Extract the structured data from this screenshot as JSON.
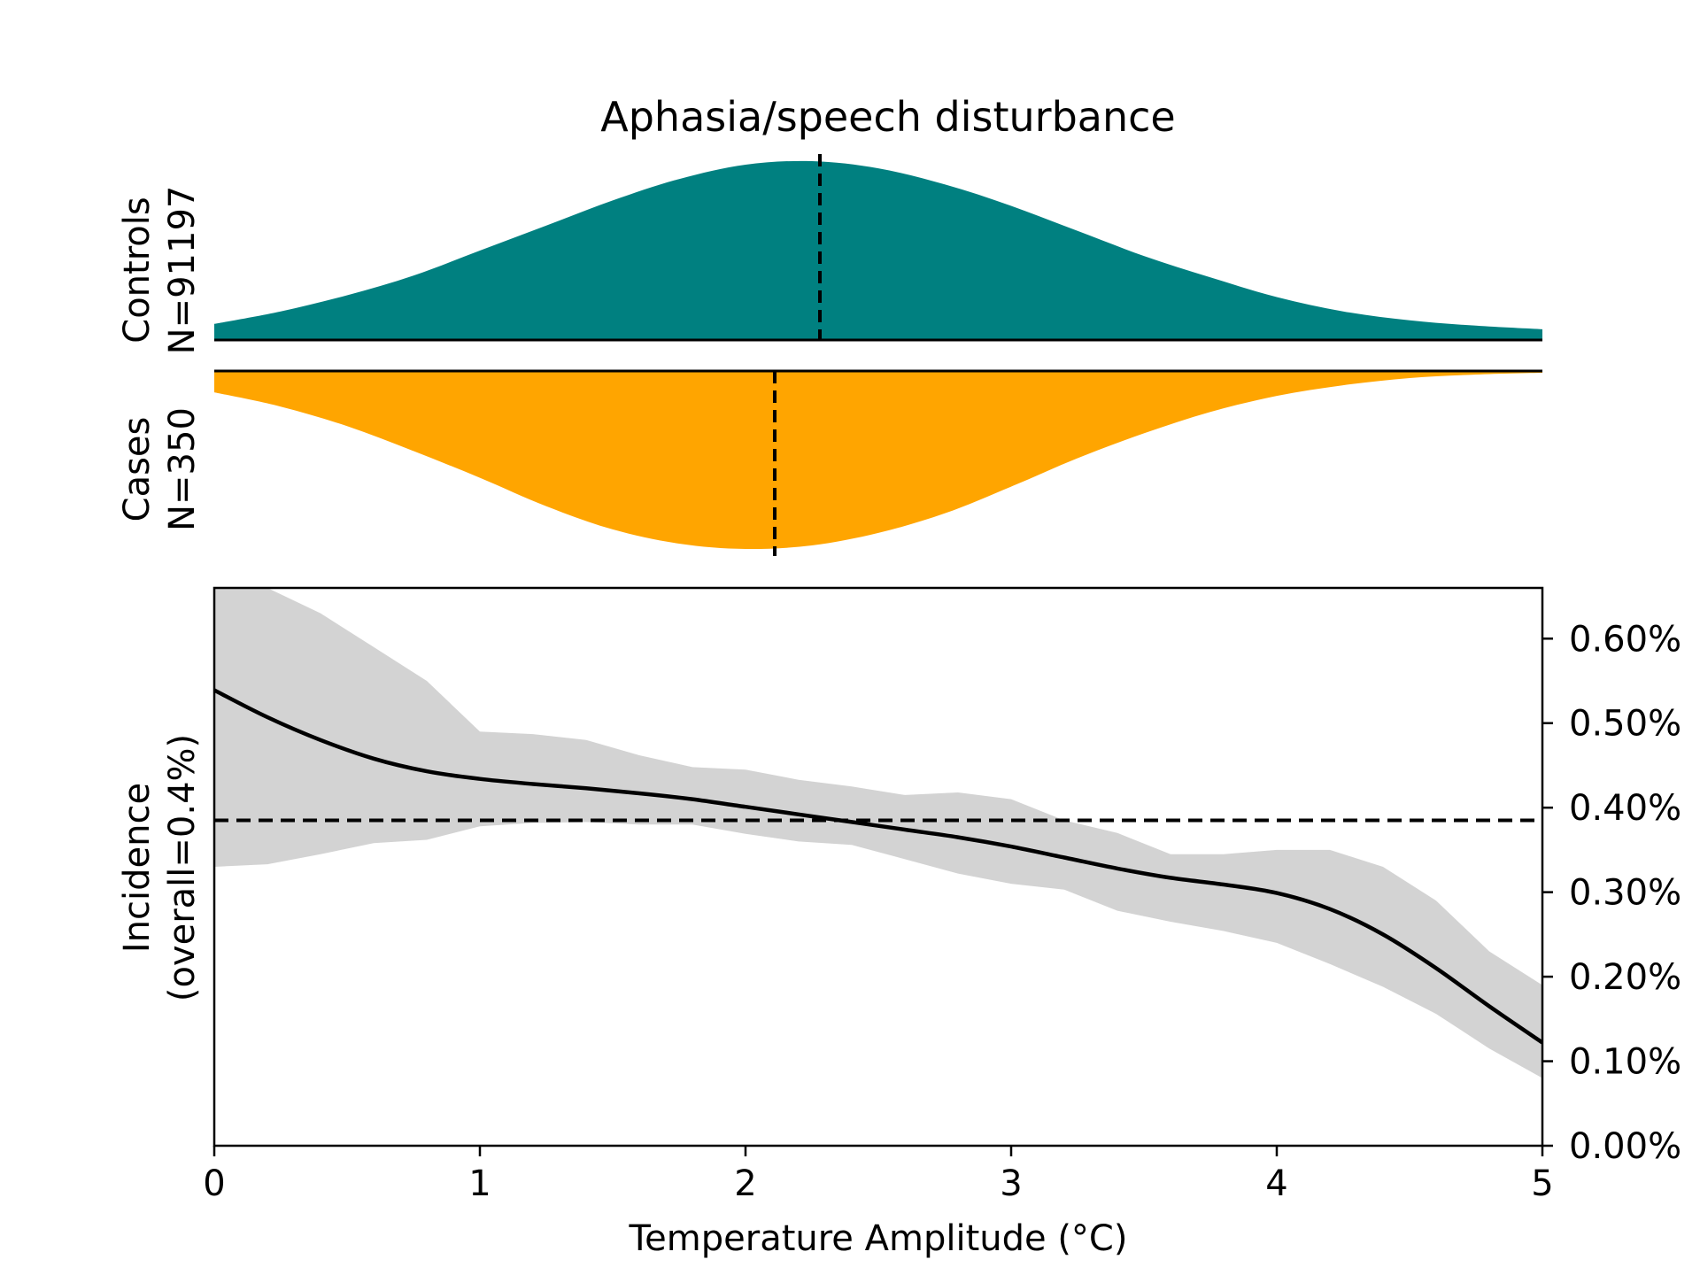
{
  "chart_data": {
    "title": "Aphasia/speech disturbance",
    "xlabel": "Temperature Amplitude (°C)",
    "xlim": [
      0,
      5
    ],
    "x_ticks": [
      {
        "v": 0,
        "label": "0"
      },
      {
        "v": 1,
        "label": "1"
      },
      {
        "v": 2,
        "label": "2"
      },
      {
        "v": 3,
        "label": "3"
      },
      {
        "v": 4,
        "label": "4"
      },
      {
        "v": 5,
        "label": "5"
      }
    ],
    "colors": {
      "controls": "#008080",
      "cases": "#ffa500",
      "ci_band": "#d3d3d3",
      "line": "#000000"
    },
    "controls": {
      "type": "area",
      "label_line1": "Controls",
      "label_line2": "N=91197",
      "median": 2.28,
      "x": [
        0,
        0.25,
        0.5,
        0.75,
        1.0,
        1.25,
        1.5,
        1.75,
        2.0,
        2.25,
        2.5,
        2.75,
        3.0,
        3.25,
        3.5,
        3.75,
        4.0,
        4.25,
        4.5,
        4.75,
        5.0
      ],
      "density": [
        0.09,
        0.16,
        0.25,
        0.36,
        0.5,
        0.64,
        0.78,
        0.9,
        0.98,
        1.0,
        0.96,
        0.87,
        0.75,
        0.61,
        0.47,
        0.35,
        0.24,
        0.16,
        0.11,
        0.08,
        0.06
      ]
    },
    "cases": {
      "type": "area",
      "label_line1": "Cases",
      "label_line2": "N=350",
      "median": 2.11,
      "x": [
        0,
        0.25,
        0.5,
        0.75,
        1.0,
        1.25,
        1.5,
        1.75,
        2.0,
        2.25,
        2.5,
        2.75,
        3.0,
        3.25,
        3.5,
        3.75,
        4.0,
        4.25,
        4.5,
        4.75,
        5.0
      ],
      "density": [
        0.12,
        0.2,
        0.31,
        0.45,
        0.6,
        0.76,
        0.89,
        0.97,
        1.0,
        0.98,
        0.91,
        0.8,
        0.65,
        0.49,
        0.35,
        0.23,
        0.14,
        0.08,
        0.04,
        0.02,
        0.01
      ]
    },
    "incidence": {
      "type": "line",
      "ylabel_line1": "Incidence",
      "ylabel_line2": "(overall=0.4%)",
      "ylim": [
        0,
        0.66
      ],
      "y_ticks": [
        {
          "v": 0.0,
          "label": "0.00%"
        },
        {
          "v": 0.1,
          "label": "0.10%"
        },
        {
          "v": 0.2,
          "label": "0.20%"
        },
        {
          "v": 0.3,
          "label": "0.30%"
        },
        {
          "v": 0.4,
          "label": "0.40%"
        },
        {
          "v": 0.5,
          "label": "0.50%"
        },
        {
          "v": 0.6,
          "label": "0.60%"
        }
      ],
      "overall": 0.385,
      "x": [
        0,
        0.2,
        0.4,
        0.6,
        0.8,
        1.0,
        1.2,
        1.4,
        1.6,
        1.8,
        2.0,
        2.2,
        2.4,
        2.6,
        2.8,
        3.0,
        3.2,
        3.4,
        3.6,
        3.8,
        4.0,
        4.2,
        4.4,
        4.6,
        4.8,
        5.0
      ],
      "y": [
        0.539,
        0.507,
        0.48,
        0.458,
        0.443,
        0.434,
        0.428,
        0.423,
        0.417,
        0.41,
        0.401,
        0.392,
        0.383,
        0.374,
        0.365,
        0.354,
        0.341,
        0.328,
        0.317,
        0.309,
        0.299,
        0.28,
        0.25,
        0.21,
        0.165,
        0.122
      ],
      "ci_upper": [
        0.66,
        0.66,
        0.63,
        0.59,
        0.55,
        0.49,
        0.487,
        0.48,
        0.462,
        0.448,
        0.445,
        0.433,
        0.425,
        0.415,
        0.418,
        0.41,
        0.385,
        0.37,
        0.345,
        0.345,
        0.35,
        0.35,
        0.33,
        0.29,
        0.23,
        0.19
      ],
      "ci_lower": [
        0.33,
        0.333,
        0.345,
        0.358,
        0.362,
        0.378,
        0.382,
        0.383,
        0.38,
        0.38,
        0.369,
        0.36,
        0.356,
        0.339,
        0.322,
        0.31,
        0.303,
        0.278,
        0.265,
        0.254,
        0.24,
        0.215,
        0.188,
        0.156,
        0.115,
        0.08
      ]
    }
  }
}
